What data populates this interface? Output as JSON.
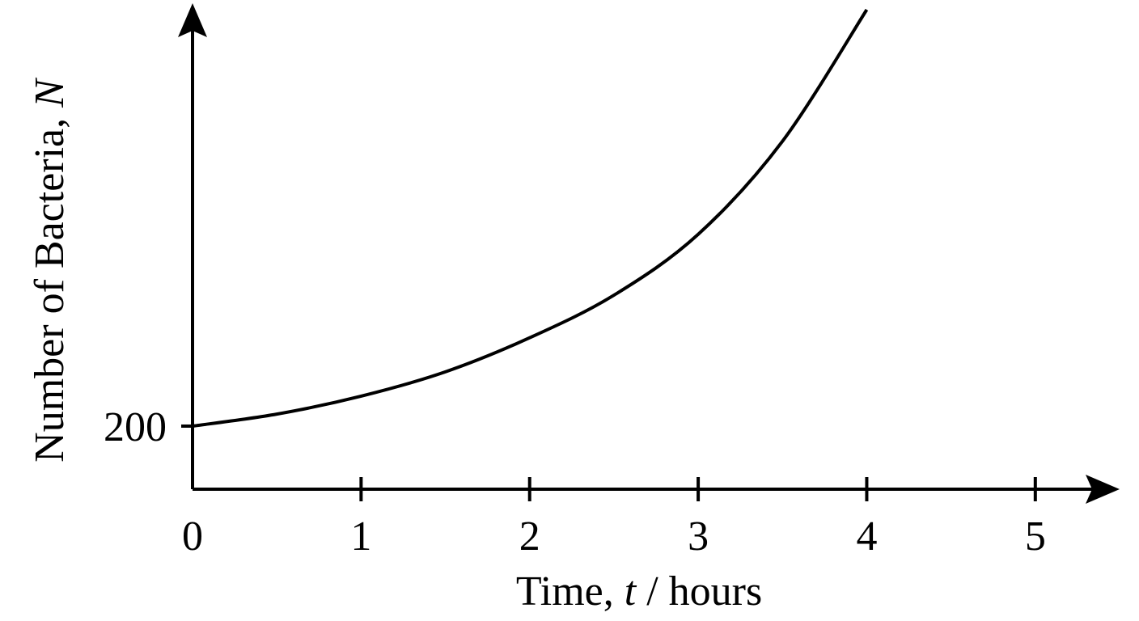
{
  "chart_data": {
    "type": "line",
    "xlabel": [
      "Time, ",
      "t",
      " / hours"
    ],
    "ylabel": [
      "Number of Bacteria, ",
      "N"
    ],
    "x": [
      0,
      0.5,
      1,
      1.5,
      2,
      2.5,
      3,
      3.5,
      4
    ],
    "series": [
      {
        "color": "#000000",
        "values": [
          200,
          238,
          295,
          372,
          480,
          615,
          808,
          1103,
          1520
        ]
      }
    ],
    "xlim": [
      0,
      5.5
    ],
    "ylim": [
      0,
      1520
    ],
    "xticks": [
      0,
      1,
      2,
      3,
      4,
      5
    ],
    "yticks": [
      200
    ],
    "grid": false
  }
}
